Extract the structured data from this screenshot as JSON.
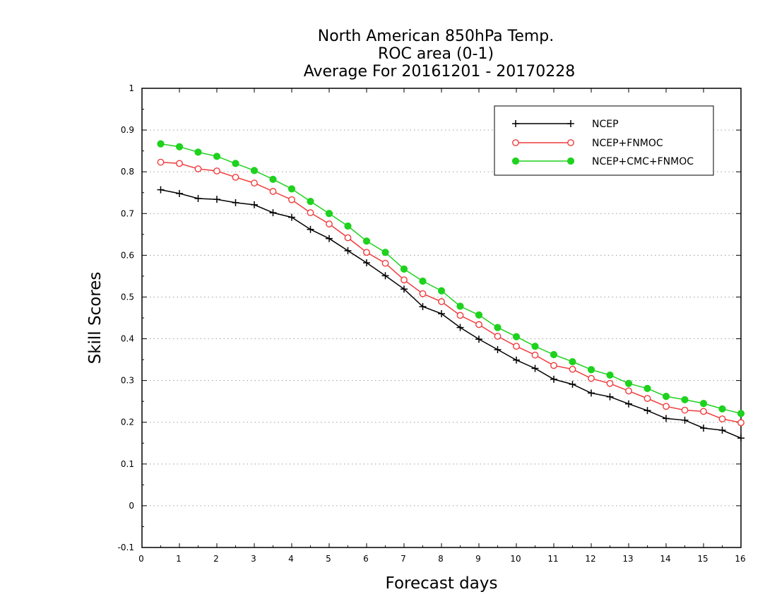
{
  "chart_data": {
    "type": "line",
    "title_lines": [
      "North American 850hPa Temp.",
      "ROC area (0-1)",
      "Average For 20161201 - 20170228"
    ],
    "xlabel": "Forecast days",
    "ylabel": "Skill Scores",
    "xlim": [
      0,
      16
    ],
    "ylim": [
      -0.1,
      1
    ],
    "x_ticks": [
      0,
      1,
      2,
      3,
      4,
      5,
      6,
      7,
      8,
      9,
      10,
      11,
      12,
      13,
      14,
      15,
      16
    ],
    "y_ticks": [
      -0.1,
      0,
      0.1,
      0.2,
      0.3,
      0.4,
      0.5,
      0.6,
      0.7,
      0.8,
      0.9,
      1
    ],
    "y_tick_labels": [
      "-0.1",
      "0",
      "0.1",
      "0.2",
      "0.3",
      "0.4",
      "0.5",
      "0.6",
      "0.7",
      "0.8",
      "0.9",
      "1"
    ],
    "grid": "horizontal-dotted",
    "legend_position": "top-right",
    "x": [
      0.5,
      1,
      1.5,
      2,
      2.5,
      3,
      3.5,
      4,
      4.5,
      5,
      5.5,
      6,
      6.5,
      7,
      7.5,
      8,
      8.5,
      9,
      9.5,
      10,
      10.5,
      11,
      11.5,
      12,
      12.5,
      13,
      13.5,
      14,
      14.5,
      15,
      15.5,
      16
    ],
    "series": [
      {
        "name": "NCEP",
        "color": "#000000",
        "marker": "plus",
        "values": [
          0.757,
          0.748,
          0.736,
          0.734,
          0.726,
          0.721,
          0.702,
          0.691,
          0.662,
          0.64,
          0.611,
          0.582,
          0.551,
          0.519,
          0.477,
          0.46,
          0.427,
          0.399,
          0.374,
          0.349,
          0.329,
          0.303,
          0.291,
          0.27,
          0.261,
          0.244,
          0.228,
          0.209,
          0.205,
          0.186,
          0.181,
          0.162
        ]
      },
      {
        "name": "NCEP+FNMOC",
        "color": "#f03c3c",
        "marker": "open-circle",
        "values": [
          0.823,
          0.82,
          0.807,
          0.802,
          0.787,
          0.773,
          0.753,
          0.733,
          0.702,
          0.675,
          0.642,
          0.607,
          0.581,
          0.541,
          0.508,
          0.489,
          0.456,
          0.434,
          0.406,
          0.382,
          0.361,
          0.336,
          0.327,
          0.305,
          0.293,
          0.275,
          0.257,
          0.238,
          0.229,
          0.226,
          0.208,
          0.199
        ]
      },
      {
        "name": "NCEP+CMC+FNMOC",
        "color": "#1ed21e",
        "marker": "filled-circle",
        "values": [
          0.867,
          0.86,
          0.847,
          0.837,
          0.82,
          0.803,
          0.782,
          0.759,
          0.729,
          0.7,
          0.67,
          0.634,
          0.607,
          0.567,
          0.538,
          0.515,
          0.478,
          0.457,
          0.427,
          0.405,
          0.382,
          0.362,
          0.345,
          0.326,
          0.313,
          0.293,
          0.281,
          0.262,
          0.254,
          0.245,
          0.232,
          0.221
        ]
      }
    ]
  }
}
